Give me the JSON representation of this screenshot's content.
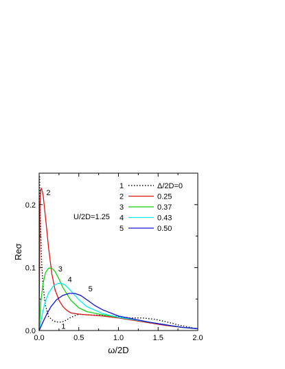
{
  "chart_data": {
    "type": "line",
    "xlabel": "ω/2D",
    "ylabel": "Reσ",
    "xlim": [
      0.0,
      2.0
    ],
    "ylim": [
      0.0,
      0.25
    ],
    "xticks": [
      0.0,
      0.5,
      1.0,
      1.5,
      2.0
    ],
    "xtick_labels": [
      "0.0",
      "0.5",
      "1.0",
      "1.5",
      "2.0"
    ],
    "yticks": [
      0.0,
      0.1,
      0.2
    ],
    "ytick_labels": [
      "0.0",
      "0.1",
      "0.2"
    ],
    "grid": false,
    "legend_position": "top-right",
    "annotation": "U/2D=1.25",
    "series": [
      {
        "name": "Δ/2D=0",
        "legend_number": "1",
        "curve_label": "1",
        "label_at": [
          0.28,
          0.003
        ],
        "color": "#000000",
        "dash": "dotted",
        "x": [
          0.005,
          0.015,
          0.03,
          0.05,
          0.08,
          0.12,
          0.18,
          0.25,
          0.32,
          0.4,
          0.5,
          0.6,
          0.8,
          1.0,
          1.15,
          1.3,
          1.45,
          1.6,
          1.75,
          1.9,
          2.0
        ],
        "y": [
          0.245,
          0.18,
          0.11,
          0.07,
          0.04,
          0.022,
          0.015,
          0.013,
          0.015,
          0.021,
          0.026,
          0.025,
          0.024,
          0.022,
          0.02,
          0.02,
          0.018,
          0.014,
          0.009,
          0.005,
          0.003
        ]
      },
      {
        "name": "0.25",
        "legend_number": "2",
        "curve_label": "2",
        "label_at": [
          0.09,
          0.215
        ],
        "color": "#e01010",
        "dash": "solid",
        "x": [
          0.0,
          0.01,
          0.02,
          0.03,
          0.05,
          0.08,
          0.12,
          0.16,
          0.2,
          0.25,
          0.3,
          0.35,
          0.4,
          0.5,
          0.6,
          0.8,
          1.0,
          1.2,
          1.4,
          1.6,
          1.8,
          2.0
        ],
        "y": [
          0.0,
          0.2,
          0.224,
          0.226,
          0.215,
          0.18,
          0.13,
          0.09,
          0.065,
          0.048,
          0.038,
          0.032,
          0.028,
          0.026,
          0.025,
          0.023,
          0.02,
          0.016,
          0.012,
          0.008,
          0.005,
          0.003
        ]
      },
      {
        "name": "0.37",
        "legend_number": "3",
        "curve_label": "3",
        "label_at": [
          0.24,
          0.094
        ],
        "color": "#10d010",
        "dash": "solid",
        "x": [
          0.0,
          0.02,
          0.05,
          0.08,
          0.12,
          0.16,
          0.2,
          0.25,
          0.3,
          0.4,
          0.5,
          0.6,
          0.8,
          1.0,
          1.2,
          1.4,
          1.6,
          1.8,
          2.0
        ],
        "y": [
          0.0,
          0.045,
          0.075,
          0.092,
          0.099,
          0.099,
          0.094,
          0.082,
          0.068,
          0.048,
          0.036,
          0.03,
          0.025,
          0.021,
          0.017,
          0.013,
          0.009,
          0.005,
          0.003
        ]
      },
      {
        "name": "0.43",
        "legend_number": "4",
        "curve_label": "4",
        "label_at": [
          0.36,
          0.077
        ],
        "color": "#00f0f0",
        "dash": "solid",
        "x": [
          0.0,
          0.03,
          0.07,
          0.12,
          0.18,
          0.24,
          0.28,
          0.33,
          0.4,
          0.5,
          0.6,
          0.8,
          1.0,
          1.2,
          1.4,
          1.6,
          1.8,
          2.0
        ],
        "y": [
          0.0,
          0.02,
          0.043,
          0.06,
          0.071,
          0.075,
          0.075,
          0.072,
          0.063,
          0.049,
          0.038,
          0.027,
          0.021,
          0.017,
          0.013,
          0.009,
          0.005,
          0.003
        ]
      },
      {
        "name": "0.50",
        "legend_number": "5",
        "curve_label": "5",
        "label_at": [
          0.62,
          0.062
        ],
        "color": "#1010d0",
        "dash": "solid",
        "x": [
          0.0,
          0.05,
          0.1,
          0.15,
          0.22,
          0.3,
          0.38,
          0.45,
          0.52,
          0.6,
          0.7,
          0.8,
          1.0,
          1.2,
          1.4,
          1.6,
          1.8,
          2.0
        ],
        "y": [
          0.0,
          0.014,
          0.027,
          0.038,
          0.049,
          0.056,
          0.059,
          0.059,
          0.056,
          0.049,
          0.04,
          0.033,
          0.023,
          0.018,
          0.013,
          0.009,
          0.005,
          0.003
        ]
      }
    ]
  }
}
